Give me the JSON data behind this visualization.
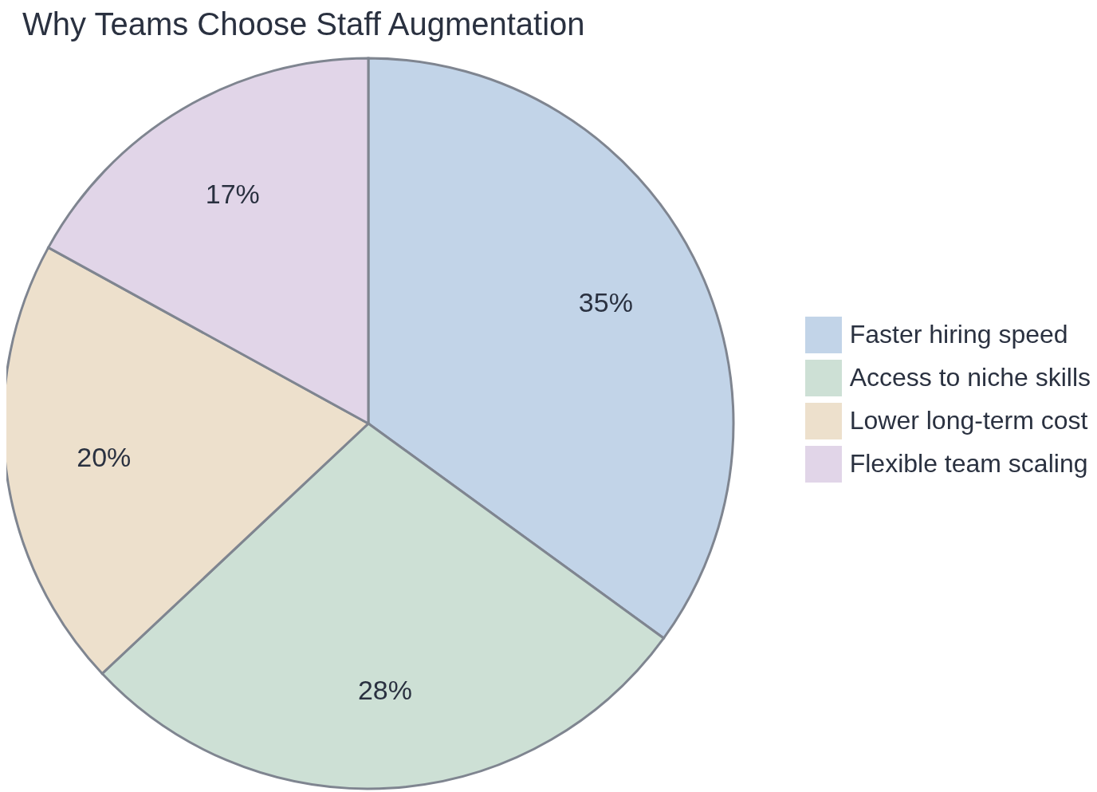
{
  "chart_data": {
    "type": "pie",
    "title": "Why Teams Choose Staff Augmentation",
    "categories": [
      "Faster hiring speed",
      "Access to niche skills",
      "Lower long-term cost",
      "Flexible team scaling"
    ],
    "values": [
      35,
      28,
      20,
      17
    ],
    "colors": [
      "#c2d4e8",
      "#cde0d5",
      "#ede0cc",
      "#e1d5e8"
    ],
    "value_labels": [
      "35%",
      "28%",
      "20%",
      "17%"
    ],
    "legend": "right"
  }
}
